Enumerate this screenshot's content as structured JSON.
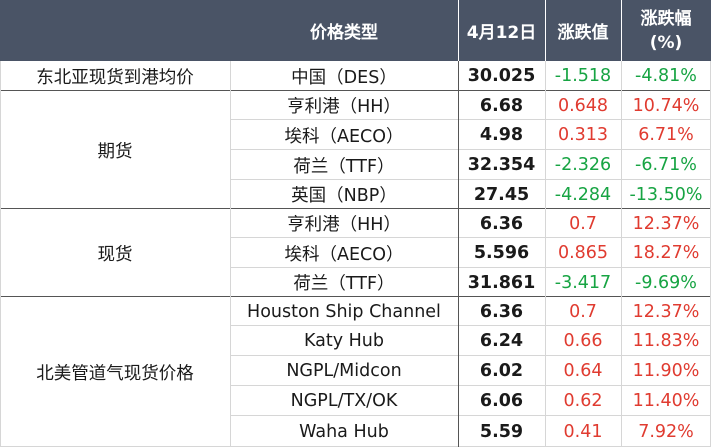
{
  "header": {
    "col_type": "价格类型",
    "col_date": "4月12日",
    "col_change": "涨跌值",
    "col_pct_line1": "涨跌幅",
    "col_pct_line2": "(%)"
  },
  "groups": {
    "g0": "东北亚现货到港均价",
    "g1": "期货",
    "g2": "现货",
    "g3": "北美管道气现货价格"
  },
  "rows": [
    {
      "name": "中国（DES）",
      "value": "30.025",
      "change": "-1.518",
      "pct": "-4.81%",
      "trend": "neg"
    },
    {
      "name": "亨利港（HH）",
      "value": "6.68",
      "change": "0.648",
      "pct": "10.74%",
      "trend": "pos"
    },
    {
      "name": "埃科（AECO）",
      "value": "4.98",
      "change": "0.313",
      "pct": "6.71%",
      "trend": "pos"
    },
    {
      "name": "荷兰（TTF）",
      "value": "32.354",
      "change": "-2.326",
      "pct": "-6.71%",
      "trend": "neg"
    },
    {
      "name": "英国（NBP）",
      "value": "27.45",
      "change": "-4.284",
      "pct": "-13.50%",
      "trend": "neg"
    },
    {
      "name": "亨利港（HH）",
      "value": "6.36",
      "change": "0.7",
      "pct": "12.37%",
      "trend": "pos"
    },
    {
      "name": "埃科（AECO）",
      "value": "5.596",
      "change": "0.865",
      "pct": "18.27%",
      "trend": "pos"
    },
    {
      "name": "荷兰（TTF）",
      "value": "31.861",
      "change": "-3.417",
      "pct": "-9.69%",
      "trend": "neg"
    },
    {
      "name": "Houston Ship Channel",
      "value": "6.36",
      "change": "0.7",
      "pct": "12.37%",
      "trend": "pos"
    },
    {
      "name": "Katy Hub",
      "value": "6.24",
      "change": "0.66",
      "pct": "11.83%",
      "trend": "pos"
    },
    {
      "name": "NGPL/Midcon",
      "value": "6.02",
      "change": "0.64",
      "pct": "11.90%",
      "trend": "pos"
    },
    {
      "name": "NGPL/TX/OK",
      "value": "6.06",
      "change": "0.62",
      "pct": "11.40%",
      "trend": "pos"
    },
    {
      "name": "Waha Hub",
      "value": "5.59",
      "change": "0.41",
      "pct": "7.92%",
      "trend": "pos"
    }
  ],
  "colors": {
    "header_bg": "#4a5466",
    "negative": "#17a443",
    "positive": "#e03b30"
  }
}
